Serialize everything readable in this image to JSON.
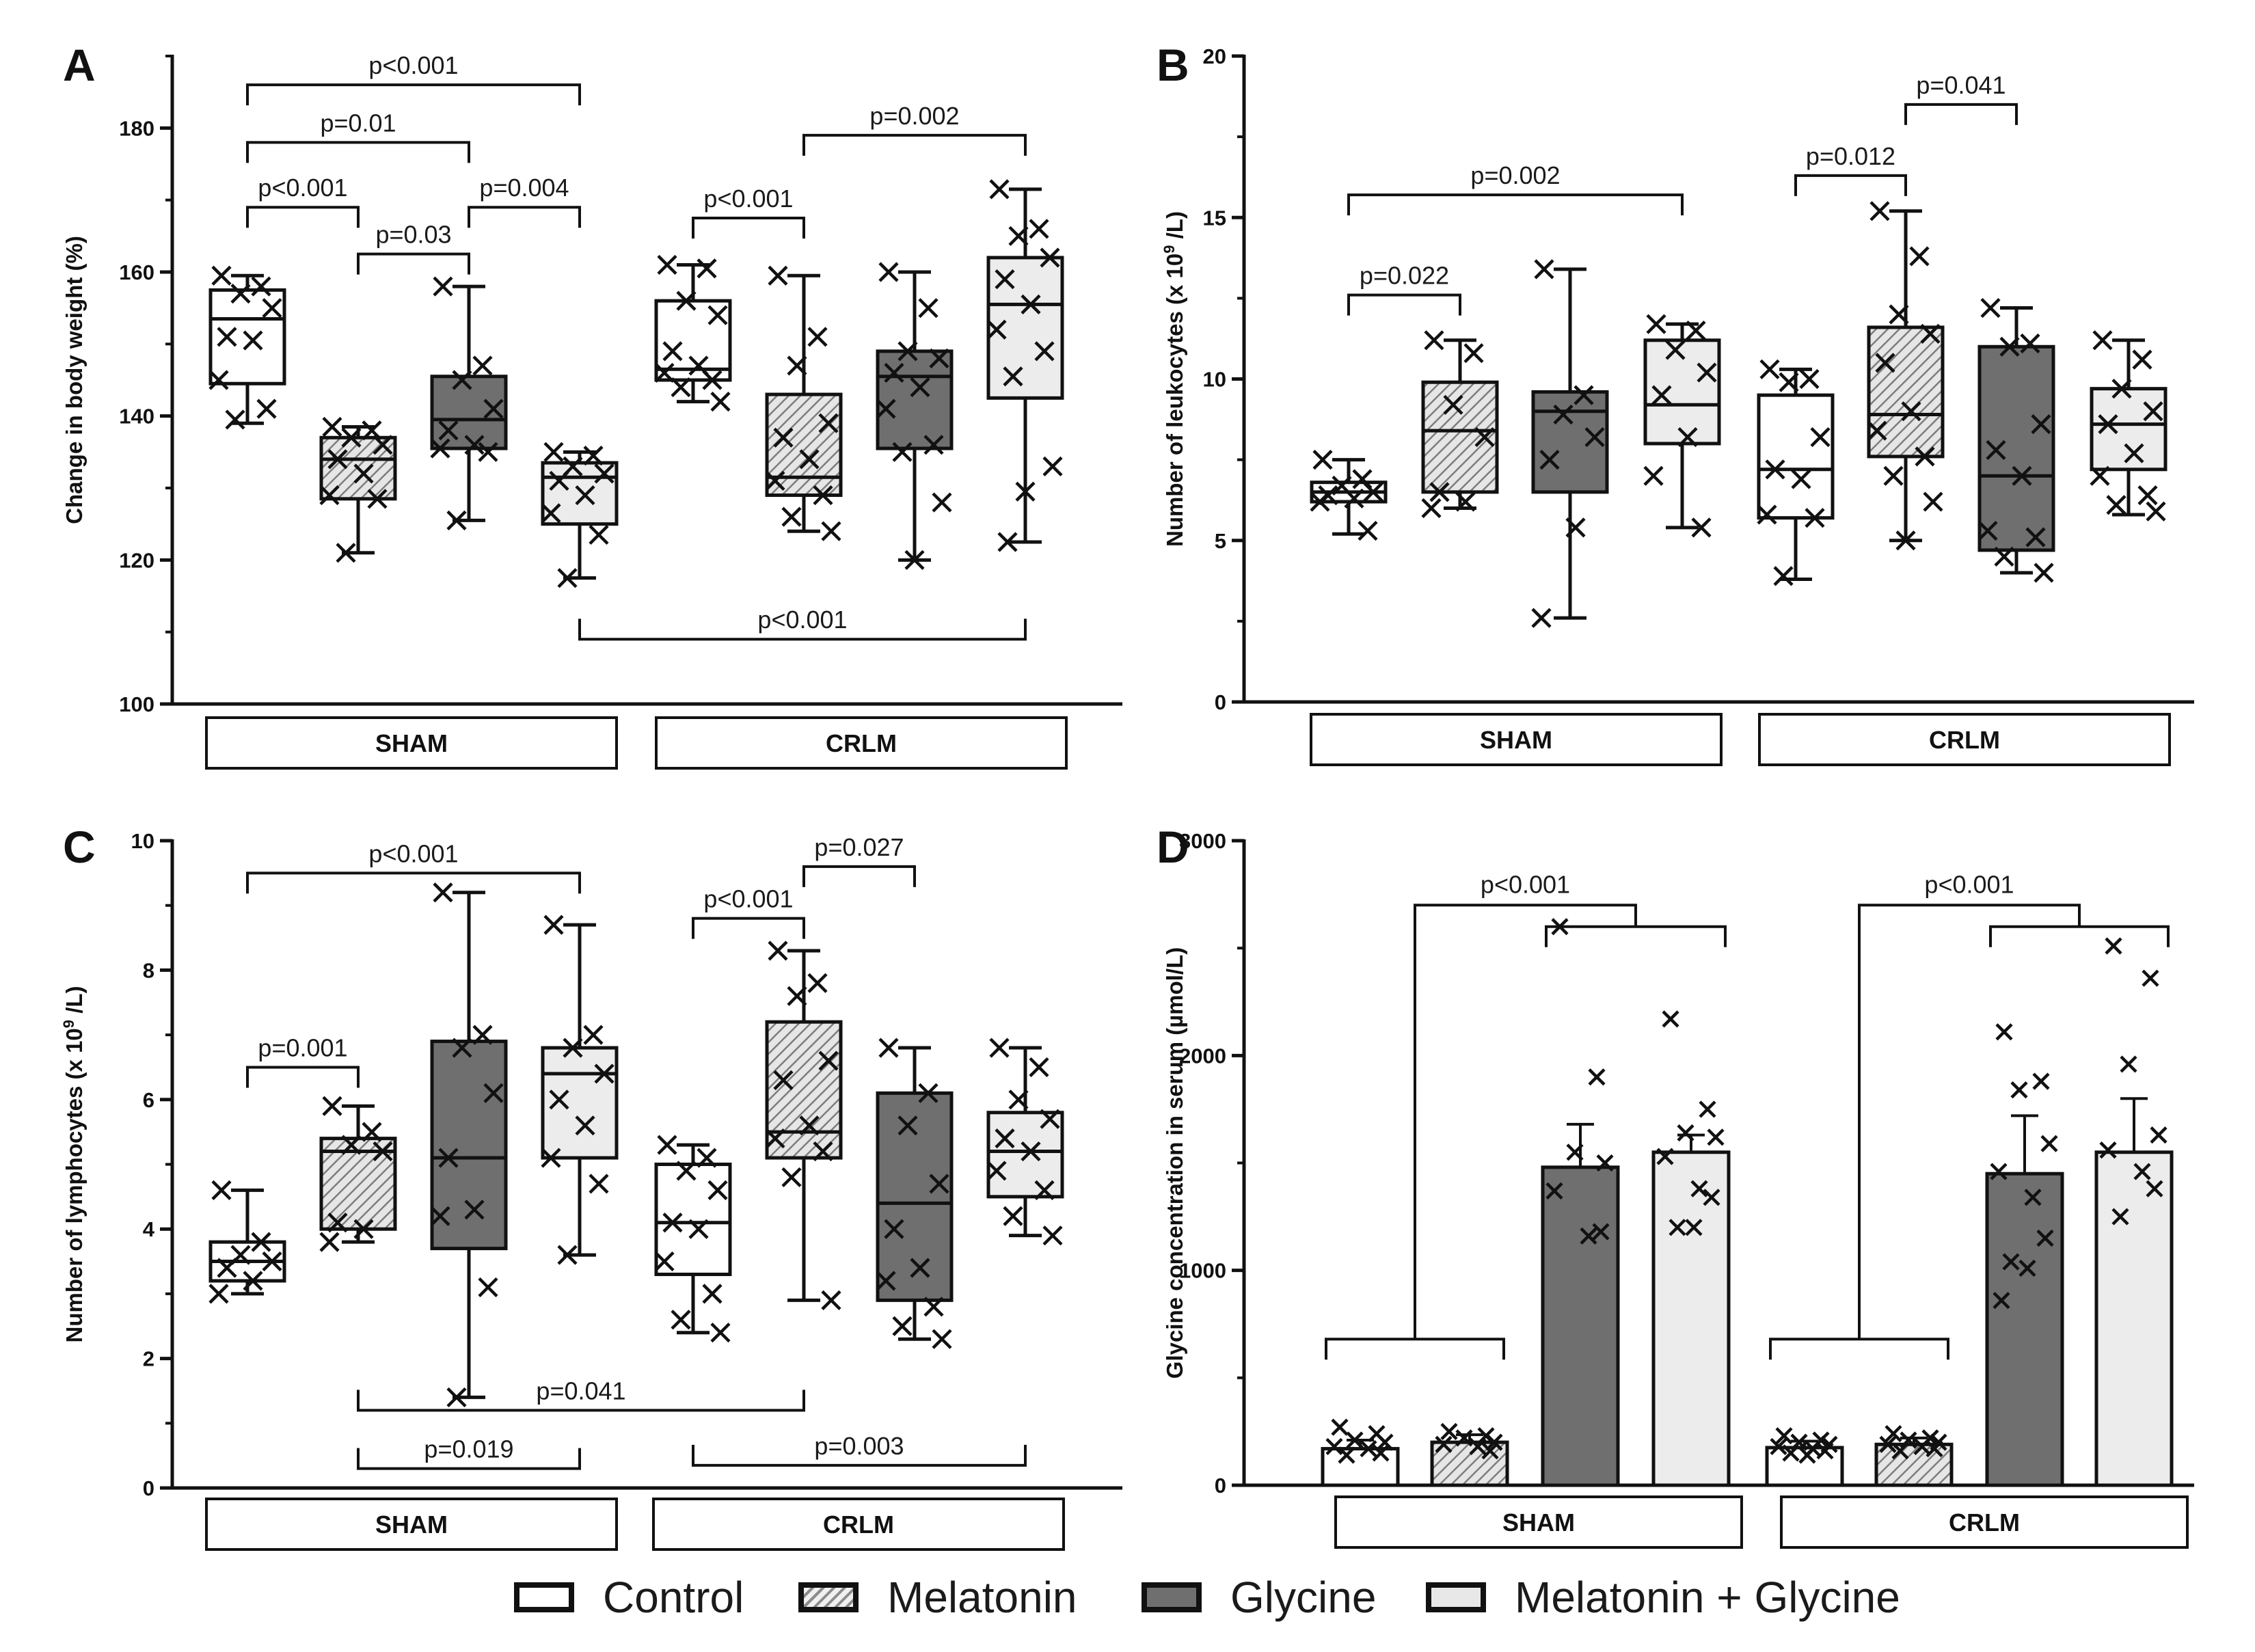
{
  "figure": {
    "legend": [
      {
        "key": "control",
        "label": "Control",
        "color": "#ffffff"
      },
      {
        "key": "melatonin",
        "label": "Melatonin",
        "color": "#d6d6d6"
      },
      {
        "key": "glycine",
        "label": "Glycine",
        "color": "#6f6f6f"
      },
      {
        "key": "melgly",
        "label": "Melatonin + Glycine",
        "color": "#e8e8e8"
      }
    ]
  },
  "chart_data": [
    {
      "panel": "A",
      "type": "box",
      "ylabel": "Change in body weight (%)",
      "ylim": [
        100,
        190
      ],
      "yticks": [
        100,
        120,
        140,
        160,
        180
      ],
      "groups": [
        "SHAM",
        "CRLM"
      ],
      "series_order": [
        "control",
        "melatonin",
        "glycine",
        "melgly"
      ],
      "boxes": [
        {
          "group": "SHAM",
          "series": "control",
          "min": 139,
          "q1": 144.5,
          "median": 153.5,
          "q3": 157.5,
          "max": 159.5,
          "points": [
            159.5,
            158,
            157,
            155,
            151,
            150.5,
            145,
            141,
            139.5
          ]
        },
        {
          "group": "SHAM",
          "series": "melatonin",
          "min": 121,
          "q1": 128.5,
          "median": 134,
          "q3": 137,
          "max": 138.5,
          "points": [
            138.5,
            138,
            137,
            136,
            134,
            132,
            129,
            128.5,
            121
          ]
        },
        {
          "group": "SHAM",
          "series": "glycine",
          "min": 125.5,
          "q1": 135.5,
          "median": 139.5,
          "q3": 145.5,
          "max": 158,
          "points": [
            158,
            147,
            145,
            141,
            138,
            136,
            135.5,
            135,
            125.5
          ]
        },
        {
          "group": "SHAM",
          "series": "melgly",
          "min": 117.5,
          "q1": 125,
          "median": 131.5,
          "q3": 133.5,
          "max": 135,
          "points": [
            135,
            134.5,
            133,
            132,
            131,
            129,
            126.5,
            123.5,
            117.5
          ]
        },
        {
          "group": "CRLM",
          "series": "control",
          "min": 142,
          "q1": 145,
          "median": 146.5,
          "q3": 156,
          "max": 161,
          "points": [
            161,
            160.5,
            156,
            154,
            149,
            147,
            146,
            145,
            144,
            142
          ]
        },
        {
          "group": "CRLM",
          "series": "melatonin",
          "min": 124,
          "q1": 129,
          "median": 131.5,
          "q3": 143,
          "max": 159.5,
          "points": [
            159.5,
            151,
            147,
            139,
            137,
            134,
            131,
            129,
            126,
            124
          ]
        },
        {
          "group": "CRLM",
          "series": "glycine",
          "min": 120,
          "q1": 135.5,
          "median": 145.5,
          "q3": 149,
          "max": 160,
          "points": [
            160,
            155,
            149,
            148,
            146,
            144,
            141,
            136,
            135,
            128,
            120
          ]
        },
        {
          "group": "CRLM",
          "series": "melgly",
          "min": 122.5,
          "q1": 142.5,
          "median": 155.5,
          "q3": 162,
          "max": 171.5,
          "points": [
            171.5,
            166,
            165,
            162,
            159,
            155.5,
            152,
            149,
            145.5,
            133,
            129.5,
            122.5
          ]
        }
      ],
      "brackets": [
        {
          "label": "p<0.001",
          "from": [
            0,
            0
          ],
          "to": [
            0,
            3
          ],
          "y": 186
        },
        {
          "label": "p=0.01",
          "from": [
            0,
            0
          ],
          "to": [
            0,
            2
          ],
          "y": 178
        },
        {
          "label": "p<0.001",
          "from": [
            0,
            0
          ],
          "to": [
            0,
            1
          ],
          "y": 169
        },
        {
          "label": "p=0.004",
          "from": [
            0,
            2
          ],
          "to": [
            0,
            3
          ],
          "y": 169
        },
        {
          "label": "p=0.03",
          "from": [
            0,
            1
          ],
          "to": [
            0,
            2
          ],
          "y": 162.5
        },
        {
          "label": "p<0.001",
          "from": [
            1,
            0
          ],
          "to": [
            1,
            1
          ],
          "y": 167.5
        },
        {
          "label": "p=0.002",
          "from": [
            1,
            1
          ],
          "to": [
            1,
            3
          ],
          "y": 179
        },
        {
          "label": "p<0.001",
          "from": [
            0,
            3
          ],
          "to": [
            1,
            3
          ],
          "y": 109,
          "below": true
        }
      ]
    },
    {
      "panel": "B",
      "type": "box",
      "ylabel": "Number of leukocytes (x 10",
      "ylabel_sup": "9",
      "ylabel_tail": " /L)",
      "ylim": [
        0,
        20
      ],
      "yticks": [
        0,
        5,
        10,
        15,
        20
      ],
      "groups": [
        "SHAM",
        "CRLM"
      ],
      "series_order": [
        "control",
        "melatonin",
        "glycine",
        "melgly"
      ],
      "boxes": [
        {
          "group": "SHAM",
          "series": "control",
          "min": 5.2,
          "q1": 6.2,
          "median": 6.5,
          "q3": 6.8,
          "max": 7.5,
          "points": [
            7.5,
            6.9,
            6.7,
            6.5,
            6.4,
            6.3,
            6.2,
            5.3
          ]
        },
        {
          "group": "SHAM",
          "series": "melatonin",
          "min": 6,
          "q1": 6.5,
          "median": 8.4,
          "q3": 9.9,
          "max": 11.2,
          "points": [
            11.2,
            10.8,
            9.2,
            8.2,
            6.5,
            6.2,
            6.0
          ]
        },
        {
          "group": "SHAM",
          "series": "glycine",
          "min": 2.6,
          "q1": 6.5,
          "median": 9,
          "q3": 9.6,
          "max": 13.4,
          "points": [
            13.4,
            9.5,
            8.9,
            8.2,
            7.5,
            5.4,
            2.6
          ]
        },
        {
          "group": "SHAM",
          "series": "melgly",
          "min": 5.4,
          "q1": 8,
          "median": 9.2,
          "q3": 11.2,
          "max": 11.7,
          "points": [
            11.7,
            11.5,
            10.9,
            10.2,
            9.5,
            8.2,
            7.0,
            5.4
          ]
        },
        {
          "group": "CRLM",
          "series": "control",
          "min": 3.8,
          "q1": 5.7,
          "median": 7.2,
          "q3": 9.5,
          "max": 10.3,
          "points": [
            10.3,
            10.0,
            9.9,
            8.2,
            7.2,
            6.9,
            5.8,
            5.7,
            3.9
          ]
        },
        {
          "group": "CRLM",
          "series": "melatonin",
          "min": 5,
          "q1": 7.6,
          "median": 8.9,
          "q3": 11.6,
          "max": 15.2,
          "points": [
            15.2,
            13.8,
            12.0,
            11.4,
            10.5,
            9.0,
            8.4,
            7.6,
            7.0,
            6.2,
            5.0
          ]
        },
        {
          "group": "CRLM",
          "series": "glycine",
          "min": 4,
          "q1": 4.7,
          "median": 7,
          "q3": 11,
          "max": 12.2,
          "points": [
            12.2,
            11.1,
            11.0,
            8.6,
            7.8,
            7.0,
            5.3,
            5.1,
            4.5,
            4.0
          ]
        },
        {
          "group": "CRLM",
          "series": "melgly",
          "min": 5.8,
          "q1": 7.2,
          "median": 8.6,
          "q3": 9.7,
          "max": 11.2,
          "points": [
            11.2,
            10.6,
            9.7,
            9.0,
            8.6,
            7.7,
            7.0,
            6.4,
            6.1,
            5.9
          ]
        }
      ],
      "brackets": [
        {
          "label": "p=0.022",
          "from": [
            0,
            0
          ],
          "to": [
            0,
            1
          ],
          "y": 12.6
        },
        {
          "label": "p=0.002",
          "from": [
            0,
            0
          ],
          "to": [
            0,
            3
          ],
          "y": 15.7
        },
        {
          "label": "p=0.012",
          "from": [
            1,
            0
          ],
          "to": [
            1,
            1
          ],
          "y": 16.3
        },
        {
          "label": "p=0.041",
          "from": [
            1,
            1
          ],
          "to": [
            1,
            2
          ],
          "y": 18.5
        }
      ]
    },
    {
      "panel": "C",
      "type": "box",
      "ylabel": "Number of lymphocytes (x 10",
      "ylabel_sup": "9",
      "ylabel_tail": " /L)",
      "ylim": [
        0,
        10
      ],
      "yticks": [
        0,
        2,
        4,
        6,
        8,
        10
      ],
      "groups": [
        "SHAM",
        "CRLM"
      ],
      "series_order": [
        "control",
        "melatonin",
        "glycine",
        "melgly"
      ],
      "boxes": [
        {
          "group": "SHAM",
          "series": "control",
          "min": 3,
          "q1": 3.2,
          "median": 3.5,
          "q3": 3.8,
          "max": 4.6,
          "points": [
            4.6,
            3.8,
            3.6,
            3.5,
            3.4,
            3.2,
            3.0
          ]
        },
        {
          "group": "SHAM",
          "series": "melatonin",
          "min": 3.8,
          "q1": 4,
          "median": 5.2,
          "q3": 5.4,
          "max": 5.9,
          "points": [
            5.9,
            5.5,
            5.3,
            5.2,
            4.1,
            4.0,
            3.8
          ]
        },
        {
          "group": "SHAM",
          "series": "glycine",
          "min": 1.4,
          "q1": 3.7,
          "median": 5.1,
          "q3": 6.9,
          "max": 9.2,
          "points": [
            9.2,
            7.0,
            6.8,
            6.1,
            5.1,
            4.3,
            4.2,
            3.1,
            1.4
          ]
        },
        {
          "group": "SHAM",
          "series": "melgly",
          "min": 3.6,
          "q1": 5.1,
          "median": 6.4,
          "q3": 6.8,
          "max": 8.7,
          "points": [
            8.7,
            7.0,
            6.8,
            6.4,
            6.0,
            5.6,
            5.1,
            4.7,
            3.6
          ]
        },
        {
          "group": "CRLM",
          "series": "control",
          "min": 2.4,
          "q1": 3.3,
          "median": 4.1,
          "q3": 5,
          "max": 5.3,
          "points": [
            5.3,
            5.1,
            4.9,
            4.6,
            4.1,
            4.0,
            3.5,
            3.0,
            2.6,
            2.4
          ]
        },
        {
          "group": "CRLM",
          "series": "melatonin",
          "min": 2.9,
          "q1": 5.1,
          "median": 5.5,
          "q3": 7.2,
          "max": 8.3,
          "points": [
            8.3,
            7.8,
            7.6,
            6.6,
            6.3,
            5.6,
            5.4,
            5.2,
            4.8,
            2.9
          ]
        },
        {
          "group": "CRLM",
          "series": "glycine",
          "min": 2.3,
          "q1": 2.9,
          "median": 4.4,
          "q3": 6.1,
          "max": 6.8,
          "points": [
            6.8,
            6.1,
            5.6,
            4.7,
            4.0,
            3.4,
            3.2,
            2.8,
            2.5,
            2.3
          ]
        },
        {
          "group": "CRLM",
          "series": "melgly",
          "min": 3.9,
          "q1": 4.5,
          "median": 5.2,
          "q3": 5.8,
          "max": 6.8,
          "points": [
            6.8,
            6.5,
            6.0,
            5.7,
            5.4,
            5.2,
            4.9,
            4.6,
            4.2,
            3.9
          ]
        }
      ],
      "brackets": [
        {
          "label": "p<0.001",
          "from": [
            0,
            0
          ],
          "to": [
            0,
            3
          ],
          "y": 9.5
        },
        {
          "label": "p=0.001",
          "from": [
            0,
            0
          ],
          "to": [
            0,
            1
          ],
          "y": 6.5
        },
        {
          "label": "p<0.001",
          "from": [
            1,
            0
          ],
          "to": [
            1,
            1
          ],
          "y": 8.8
        },
        {
          "label": "p=0.027",
          "from": [
            1,
            1
          ],
          "to": [
            1,
            2
          ],
          "y": 9.6
        },
        {
          "label": "p=0.041",
          "from": [
            0,
            1
          ],
          "to": [
            1,
            1
          ],
          "y": 1.2,
          "below": true
        },
        {
          "label": "p=0.019",
          "from": [
            0,
            1
          ],
          "to": [
            0,
            3
          ],
          "y": 0.3,
          "below": true
        },
        {
          "label": "p=0.003",
          "from": [
            1,
            0
          ],
          "to": [
            1,
            3
          ],
          "y": 0.35,
          "below": true
        }
      ]
    },
    {
      "panel": "D",
      "type": "bar",
      "ylabel": "Glycine concentration in serum (µmol/L)",
      "ylim": [
        0,
        3000
      ],
      "yticks": [
        0,
        1000,
        2000,
        3000
      ],
      "groups": [
        "SHAM",
        "CRLM"
      ],
      "series_order": [
        "control",
        "melatonin",
        "glycine",
        "melgly"
      ],
      "bars": [
        {
          "group": "SHAM",
          "series": "control",
          "mean": 170,
          "sd": 40,
          "points": [
            270,
            240,
            210,
            200,
            180,
            170,
            150,
            140
          ]
        },
        {
          "group": "SHAM",
          "series": "melatonin",
          "mean": 200,
          "sd": 35,
          "points": [
            250,
            230,
            220,
            200,
            190,
            180,
            160
          ]
        },
        {
          "group": "SHAM",
          "series": "glycine",
          "mean": 1480,
          "sd": 200,
          "points": [
            2600,
            1900,
            1550,
            1500,
            1370,
            1160,
            1180
          ]
        },
        {
          "group": "SHAM",
          "series": "melgly",
          "mean": 1550,
          "sd": 80,
          "points": [
            2170,
            1750,
            1640,
            1620,
            1530,
            1380,
            1340,
            1200,
            1200
          ]
        },
        {
          "group": "CRLM",
          "series": "control",
          "mean": 175,
          "sd": 30,
          "points": [
            230,
            210,
            200,
            190,
            180,
            170,
            160,
            150,
            140
          ]
        },
        {
          "group": "CRLM",
          "series": "melatonin",
          "mean": 190,
          "sd": 30,
          "points": [
            240,
            220,
            210,
            200,
            190,
            180,
            170,
            160
          ]
        },
        {
          "group": "CRLM",
          "series": "glycine",
          "mean": 1450,
          "sd": 270,
          "points": [
            2110,
            1880,
            1840,
            1590,
            1460,
            1340,
            1150,
            1040,
            1010,
            860
          ]
        },
        {
          "group": "CRLM",
          "series": "melgly",
          "mean": 1550,
          "sd": 250,
          "points": [
            2510,
            2360,
            1960,
            1630,
            1560,
            1460,
            1380,
            1250
          ]
        }
      ],
      "brackets": [
        {
          "label": "p<0.001",
          "type": "combo",
          "group": 0,
          "y_low": 680,
          "y_high": 2700,
          "y_right": 2600
        },
        {
          "label": "p<0.001",
          "type": "combo",
          "group": 1,
          "y_low": 680,
          "y_high": 2700,
          "y_right": 2600
        }
      ]
    }
  ]
}
